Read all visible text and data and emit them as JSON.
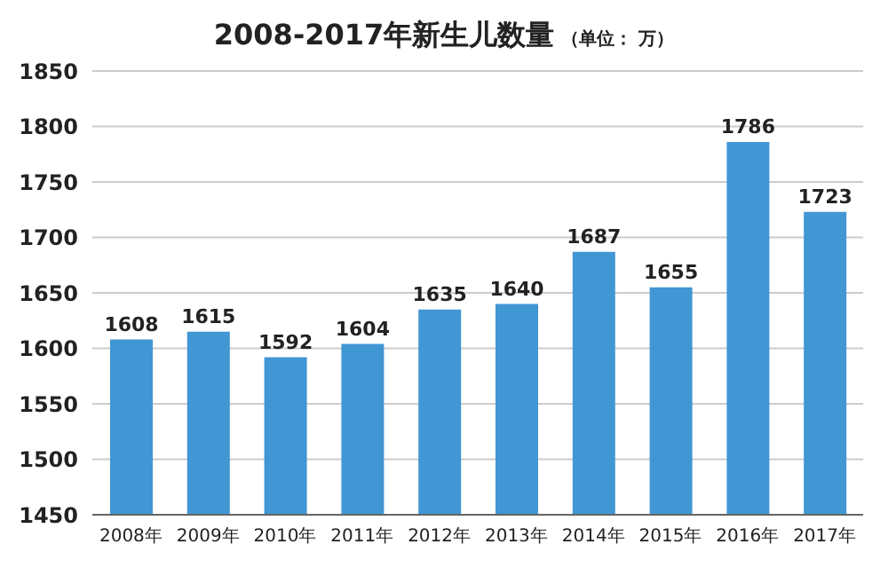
{
  "chart_data": {
    "type": "bar",
    "title": "2008-2017年新生儿数量",
    "subtitle": "（单位：  万）",
    "categories": [
      "2008年",
      "2009年",
      "2010年",
      "2011年",
      "2012年",
      "2013年",
      "2014年",
      "2015年",
      "2016年",
      "2017年"
    ],
    "values": [
      1608,
      1615,
      1592,
      1604,
      1635,
      1640,
      1687,
      1655,
      1786,
      1723
    ],
    "color": "#4196d4",
    "ylim": [
      1450,
      1850
    ],
    "yticks": [
      1450,
      1500,
      1550,
      1600,
      1650,
      1700,
      1750,
      1800,
      1850
    ],
    "grid": "y",
    "data_labels": true
  }
}
